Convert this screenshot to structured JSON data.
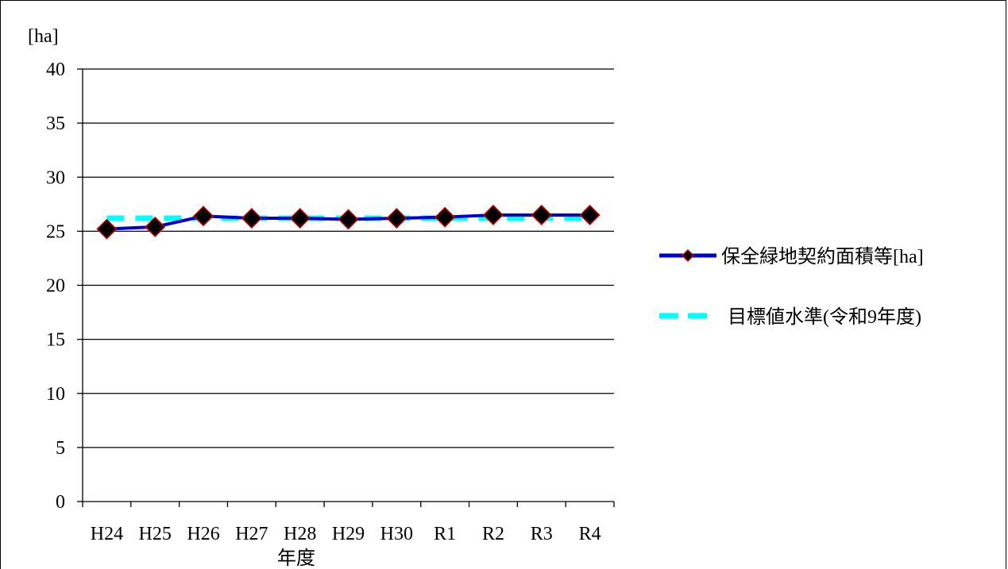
{
  "chart_data": {
    "type": "line",
    "ylabel": "[ha]",
    "xlabel": "年度",
    "categories": [
      "H24",
      "H25",
      "H26",
      "H27",
      "H28",
      "H29",
      "H30",
      "R1",
      "R2",
      "R3",
      "R4"
    ],
    "ylim": [
      0,
      40
    ],
    "yticks": [
      0,
      5,
      10,
      15,
      20,
      25,
      30,
      35,
      40
    ],
    "grid": true,
    "legend_position": "right",
    "series": [
      {
        "name": "保全緑地契約面積等[ha]",
        "values": [
          25.2,
          25.4,
          26.4,
          26.2,
          26.2,
          26.1,
          26.2,
          26.3,
          26.5,
          26.5,
          26.5
        ],
        "color": "#0000cc",
        "marker": "diamond",
        "marker_fill": "#000000",
        "marker_edge": "#cc0000",
        "line_style": "solid"
      },
      {
        "name": "目標値水準(令和9年度)",
        "values": [
          26.2,
          26.2,
          26.2,
          26.2,
          26.2,
          26.2,
          26.2,
          26.2,
          26.2,
          26.2,
          26.2
        ],
        "color": "#00ffff",
        "marker": "none",
        "line_style": "dashed"
      }
    ]
  }
}
